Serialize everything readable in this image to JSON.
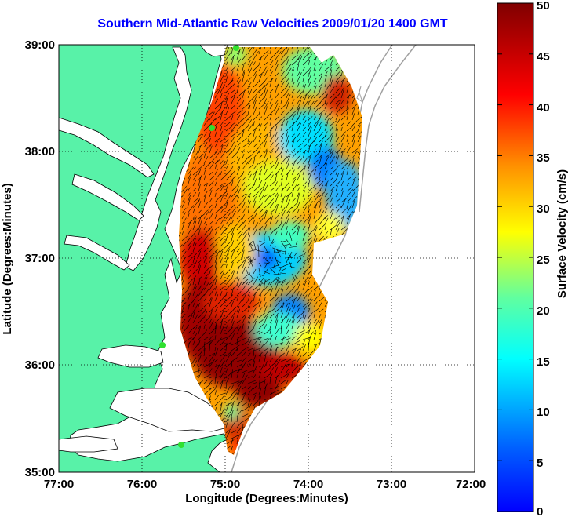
{
  "title": "Southern Mid-Atlantic Raw Velocities 2009/01/20 1400 GMT",
  "x_axis": {
    "label": "Longitude (Degrees:Minutes)",
    "ticks": [
      "77:00",
      "76:00",
      "75:00",
      "74:00",
      "73:00",
      "72:00"
    ],
    "range": [
      -77,
      -72
    ]
  },
  "y_axis": {
    "label": "Latitude (Degrees:Minutes)",
    "ticks": [
      "39:00",
      "38:00",
      "37:00",
      "36:00",
      "35:00"
    ],
    "range": [
      35,
      39
    ]
  },
  "colorbar": {
    "label": "Surface Velocity (cm/s)",
    "ticks": [
      "50",
      "45",
      "40",
      "35",
      "30",
      "25",
      "20",
      "15",
      "10",
      "5",
      "0"
    ],
    "min": 0,
    "max": 50
  },
  "colors": {
    "land": "#58f2a8",
    "water": "#ffffff",
    "title": "#0000ff",
    "grid": "#000000",
    "bathymetry": "#a0a0a0",
    "station": "#30e030"
  },
  "grid": "dotted",
  "field": {
    "type": "surface-current-velocity-map",
    "units": "cm/s"
  }
}
